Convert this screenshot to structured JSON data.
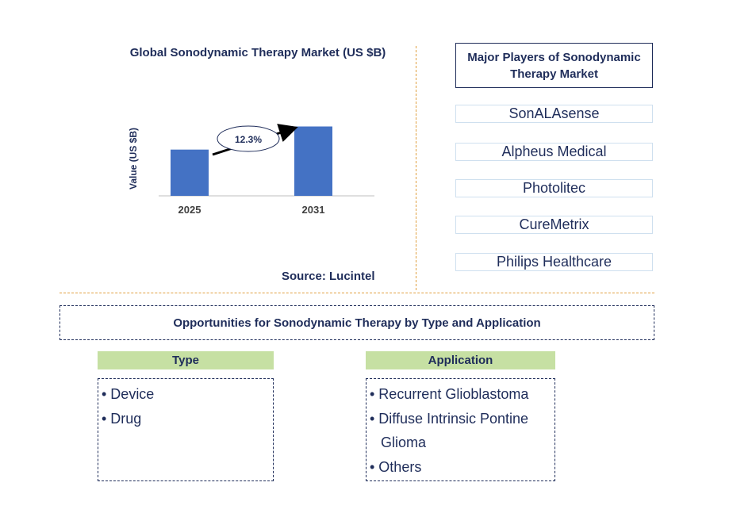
{
  "chart_data": {
    "type": "bar",
    "title": "Global Sonodynamic Therapy Market (US $B)",
    "categories": [
      "2025",
      "2031"
    ],
    "values": [
      1.0,
      1.5
    ],
    "ylabel": "Value (US $B)",
    "xlabel": "",
    "ylim": [
      0,
      1.8
    ],
    "grid": false,
    "annotation": "12.3%",
    "source": "Source: Lucintel",
    "color": "#4472c4"
  },
  "players": {
    "title": "Major Players of Sonodynamic Therapy Market",
    "items": [
      "SonALAsense",
      "Alpheus Medical",
      "Photolitec",
      "CureMetrix",
      "Philips Healthcare"
    ]
  },
  "opportunities": {
    "title": "Opportunities for Sonodynamic Therapy by Type and Application",
    "type": {
      "header": "Type",
      "items": [
        "• Device",
        "• Drug"
      ]
    },
    "application": {
      "header": "Application",
      "items": [
        "• Recurrent Glioblastoma",
        "• Diffuse Intrinsic Pontine",
        "Glioma",
        "• Others"
      ]
    }
  }
}
